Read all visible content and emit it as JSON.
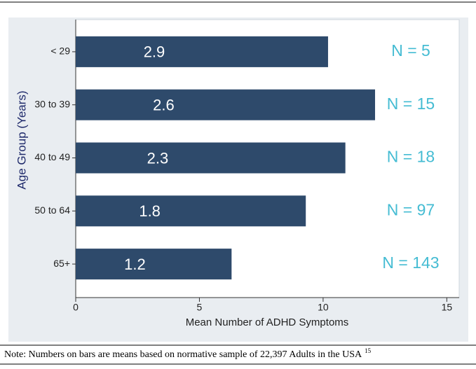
{
  "chart_data": {
    "type": "bar",
    "orientation": "horizontal",
    "categories": [
      "< 29",
      "30 to 39",
      "40 to 49",
      "50 to 64",
      "65+"
    ],
    "values": [
      10.2,
      12.1,
      10.9,
      9.3,
      6.3
    ],
    "means": [
      2.9,
      2.6,
      2.3,
      1.8,
      1.2
    ],
    "n_labels": [
      "N = 5",
      "N = 15",
      "N = 18",
      "N = 97",
      "N = 143"
    ],
    "color": "#2e4a6b",
    "n_color": "#45bcd3",
    "xlabel": "Mean Number of ADHD Symptoms",
    "ylabel": "Age Group (Years)",
    "xlim": [
      0,
      15.5
    ],
    "xticks": [
      0,
      5,
      10,
      15
    ],
    "grid": false,
    "note": "Note: Numbers on bars are means based on normative sample of 22,397 Adults in the USA",
    "note_ref": "15"
  }
}
